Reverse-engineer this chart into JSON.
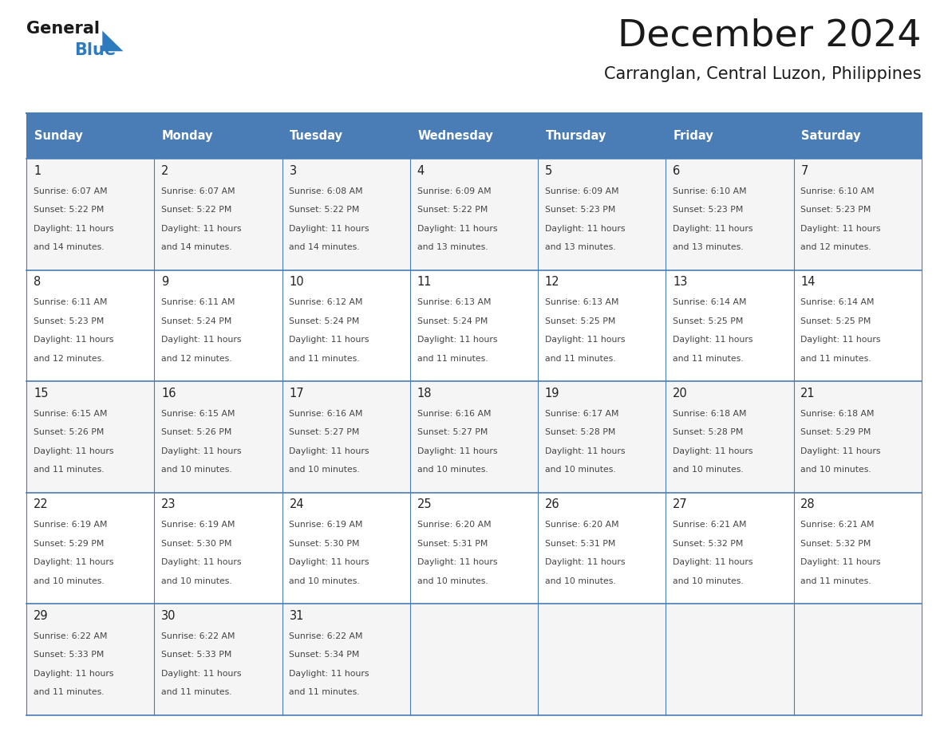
{
  "title": "December 2024",
  "subtitle": "Carranglan, Central Luzon, Philippines",
  "days_of_week": [
    "Sunday",
    "Monday",
    "Tuesday",
    "Wednesday",
    "Thursday",
    "Friday",
    "Saturday"
  ],
  "header_bg": "#4a7db5",
  "header_text": "#ffffff",
  "cell_bg_odd": "#f5f5f5",
  "cell_bg_even": "#ffffff",
  "cell_border_color": "#4a7db5",
  "title_color": "#1a1a1a",
  "subtitle_color": "#1a1a1a",
  "day_number_color": "#222222",
  "cell_text_color": "#444444",
  "calendar_data": [
    [
      {
        "day": 1,
        "sunrise": "6:07 AM",
        "sunset": "5:22 PM",
        "daylight": "11 hours and 14 minutes."
      },
      {
        "day": 2,
        "sunrise": "6:07 AM",
        "sunset": "5:22 PM",
        "daylight": "11 hours and 14 minutes."
      },
      {
        "day": 3,
        "sunrise": "6:08 AM",
        "sunset": "5:22 PM",
        "daylight": "11 hours and 14 minutes."
      },
      {
        "day": 4,
        "sunrise": "6:09 AM",
        "sunset": "5:22 PM",
        "daylight": "11 hours and 13 minutes."
      },
      {
        "day": 5,
        "sunrise": "6:09 AM",
        "sunset": "5:23 PM",
        "daylight": "11 hours and 13 minutes."
      },
      {
        "day": 6,
        "sunrise": "6:10 AM",
        "sunset": "5:23 PM",
        "daylight": "11 hours and 13 minutes."
      },
      {
        "day": 7,
        "sunrise": "6:10 AM",
        "sunset": "5:23 PM",
        "daylight": "11 hours and 12 minutes."
      }
    ],
    [
      {
        "day": 8,
        "sunrise": "6:11 AM",
        "sunset": "5:23 PM",
        "daylight": "11 hours and 12 minutes."
      },
      {
        "day": 9,
        "sunrise": "6:11 AM",
        "sunset": "5:24 PM",
        "daylight": "11 hours and 12 minutes."
      },
      {
        "day": 10,
        "sunrise": "6:12 AM",
        "sunset": "5:24 PM",
        "daylight": "11 hours and 11 minutes."
      },
      {
        "day": 11,
        "sunrise": "6:13 AM",
        "sunset": "5:24 PM",
        "daylight": "11 hours and 11 minutes."
      },
      {
        "day": 12,
        "sunrise": "6:13 AM",
        "sunset": "5:25 PM",
        "daylight": "11 hours and 11 minutes."
      },
      {
        "day": 13,
        "sunrise": "6:14 AM",
        "sunset": "5:25 PM",
        "daylight": "11 hours and 11 minutes."
      },
      {
        "day": 14,
        "sunrise": "6:14 AM",
        "sunset": "5:25 PM",
        "daylight": "11 hours and 11 minutes."
      }
    ],
    [
      {
        "day": 15,
        "sunrise": "6:15 AM",
        "sunset": "5:26 PM",
        "daylight": "11 hours and 11 minutes."
      },
      {
        "day": 16,
        "sunrise": "6:15 AM",
        "sunset": "5:26 PM",
        "daylight": "11 hours and 10 minutes."
      },
      {
        "day": 17,
        "sunrise": "6:16 AM",
        "sunset": "5:27 PM",
        "daylight": "11 hours and 10 minutes."
      },
      {
        "day": 18,
        "sunrise": "6:16 AM",
        "sunset": "5:27 PM",
        "daylight": "11 hours and 10 minutes."
      },
      {
        "day": 19,
        "sunrise": "6:17 AM",
        "sunset": "5:28 PM",
        "daylight": "11 hours and 10 minutes."
      },
      {
        "day": 20,
        "sunrise": "6:18 AM",
        "sunset": "5:28 PM",
        "daylight": "11 hours and 10 minutes."
      },
      {
        "day": 21,
        "sunrise": "6:18 AM",
        "sunset": "5:29 PM",
        "daylight": "11 hours and 10 minutes."
      }
    ],
    [
      {
        "day": 22,
        "sunrise": "6:19 AM",
        "sunset": "5:29 PM",
        "daylight": "11 hours and 10 minutes."
      },
      {
        "day": 23,
        "sunrise": "6:19 AM",
        "sunset": "5:30 PM",
        "daylight": "11 hours and 10 minutes."
      },
      {
        "day": 24,
        "sunrise": "6:19 AM",
        "sunset": "5:30 PM",
        "daylight": "11 hours and 10 minutes."
      },
      {
        "day": 25,
        "sunrise": "6:20 AM",
        "sunset": "5:31 PM",
        "daylight": "11 hours and 10 minutes."
      },
      {
        "day": 26,
        "sunrise": "6:20 AM",
        "sunset": "5:31 PM",
        "daylight": "11 hours and 10 minutes."
      },
      {
        "day": 27,
        "sunrise": "6:21 AM",
        "sunset": "5:32 PM",
        "daylight": "11 hours and 10 minutes."
      },
      {
        "day": 28,
        "sunrise": "6:21 AM",
        "sunset": "5:32 PM",
        "daylight": "11 hours and 11 minutes."
      }
    ],
    [
      {
        "day": 29,
        "sunrise": "6:22 AM",
        "sunset": "5:33 PM",
        "daylight": "11 hours and 11 minutes."
      },
      {
        "day": 30,
        "sunrise": "6:22 AM",
        "sunset": "5:33 PM",
        "daylight": "11 hours and 11 minutes."
      },
      {
        "day": 31,
        "sunrise": "6:22 AM",
        "sunset": "5:34 PM",
        "daylight": "11 hours and 11 minutes."
      },
      null,
      null,
      null,
      null
    ]
  ],
  "logo_general_color": "#1a1a1a",
  "logo_blue_color": "#2e7abf",
  "logo_triangle_color": "#2e7abf",
  "fig_width": 11.88,
  "fig_height": 9.18,
  "dpi": 100
}
